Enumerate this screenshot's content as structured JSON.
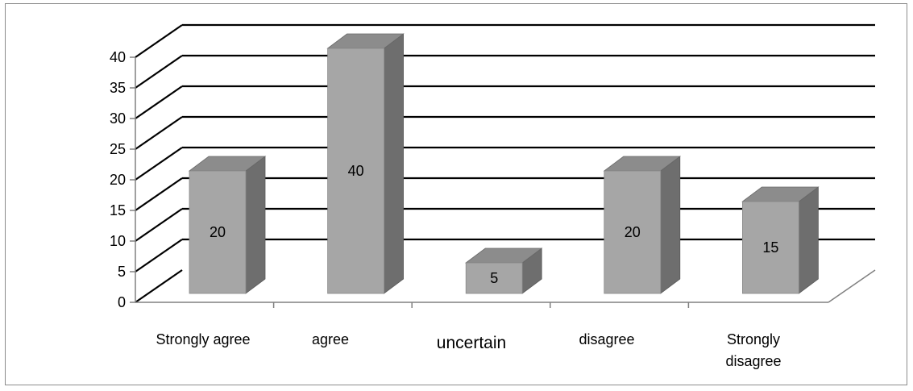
{
  "chart_data": {
    "type": "bar",
    "style": "3d-column",
    "categories": [
      "Strongly agree",
      "agree",
      "uncertain",
      "disagree",
      "Strongly disagree"
    ],
    "category_label_lines": [
      [
        "Strongly agree"
      ],
      [
        "agree"
      ],
      [
        "uncertain"
      ],
      [
        "disagree"
      ],
      [
        "Strongly",
        "disagree"
      ]
    ],
    "values": [
      20,
      40,
      5,
      20,
      15
    ],
    "data_labels": [
      "20",
      "40",
      "5",
      "20",
      "15"
    ],
    "ylim": [
      0,
      40
    ],
    "yticks": [
      "0",
      "5",
      "10",
      "15",
      "20",
      "25",
      "30",
      "35",
      "40"
    ],
    "title": "",
    "xlabel": "",
    "ylabel": "",
    "grid": true,
    "legend": "none",
    "colors": {
      "bar_front": "#a6a6a6",
      "bar_top": "#8c8c8c",
      "bar_side": "#6e6e6e",
      "gridline": "#000000",
      "axis": "#808080"
    }
  }
}
